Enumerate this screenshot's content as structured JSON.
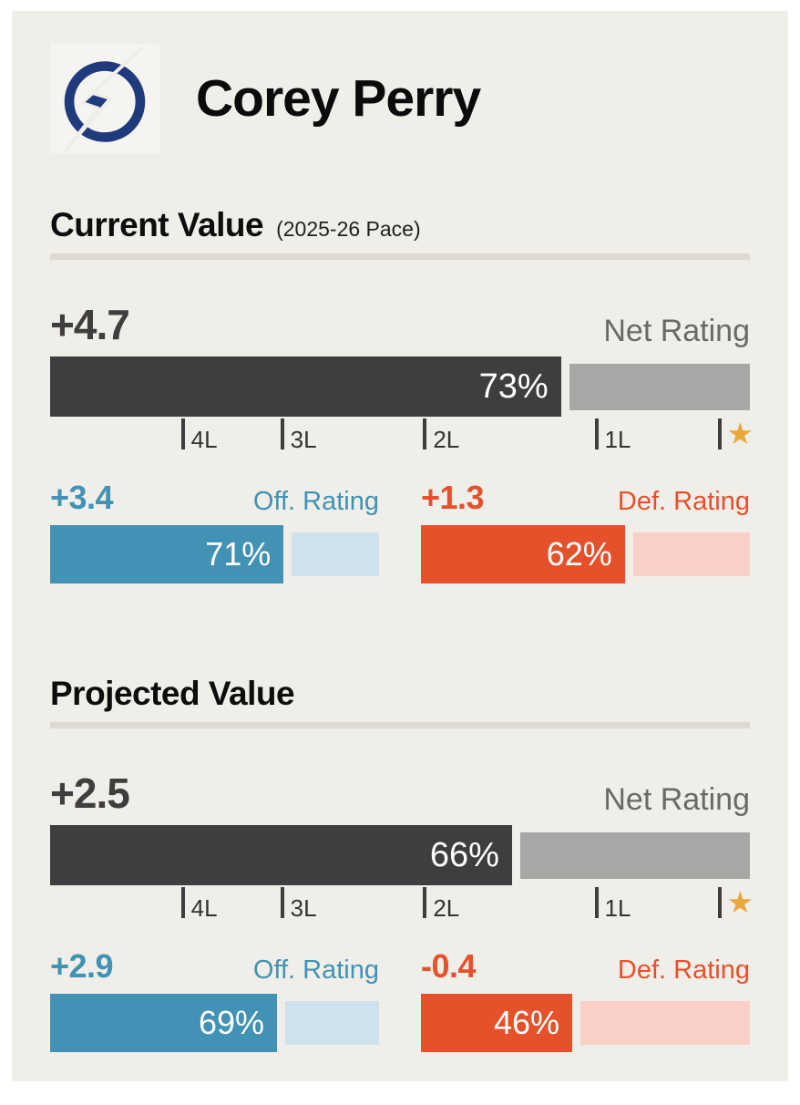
{
  "header": {
    "player_name": "Corey Perry",
    "team_logo": "tampa-bay-lightning-logo"
  },
  "colors": {
    "card_bg": "#efeee8",
    "logo_bg": "#f5f4f0",
    "dark": "#403d3e",
    "gray": "#a9a7a6",
    "muted": "#6b6968",
    "blue": "#4192b4",
    "blue_light": "#cee1ec",
    "orange": "#e5512b",
    "orange_light": "#f8d0c8",
    "star": "#eaa83c",
    "divider": "#dcdad2",
    "navy": "#1f3a7d"
  },
  "axis": {
    "ticks": [
      {
        "label": "4L",
        "pos": 18.7
      },
      {
        "label": "3L",
        "pos": 32.9
      },
      {
        "label": "2L",
        "pos": 53.3
      },
      {
        "label": "1L",
        "pos": 77.8
      }
    ],
    "star": {
      "char": "★",
      "pos": 95.5
    }
  },
  "sections": [
    {
      "title": "Current Value",
      "subtitle": "(2025-26 Pace)",
      "net": {
        "label": "Net Rating",
        "value": "+4.7",
        "pct": 73,
        "pct_label": "73%"
      },
      "off": {
        "label": "Off. Rating",
        "value": "+3.4",
        "pct": 71,
        "pct_label": "71%"
      },
      "def": {
        "label": "Def. Rating",
        "value": "+1.3",
        "pct": 62,
        "pct_label": "62%"
      }
    },
    {
      "title": "Projected Value",
      "subtitle": "",
      "net": {
        "label": "Net Rating",
        "value": "+2.5",
        "pct": 66,
        "pct_label": "66%"
      },
      "off": {
        "label": "Off. Rating",
        "value": "+2.9",
        "pct": 69,
        "pct_label": "69%"
      },
      "def": {
        "label": "Def. Rating",
        "value": "-0.4",
        "pct": 46,
        "pct_label": "46%"
      }
    }
  ],
  "chart_data": {
    "type": "bar",
    "title": "Corey Perry",
    "xlim": [
      0,
      100
    ],
    "axis_ticks": [
      "4L",
      "3L",
      "2L",
      "1L",
      "★"
    ],
    "axis_tick_positions_pct": [
      18.7,
      32.9,
      53.3,
      77.8,
      95.5
    ],
    "sections": [
      {
        "title": "Current Value (2025-26 Pace)",
        "bars": [
          {
            "label": "Net Rating",
            "value": 4.7,
            "percentile": 73
          },
          {
            "label": "Off. Rating",
            "value": 3.4,
            "percentile": 71
          },
          {
            "label": "Def. Rating",
            "value": 1.3,
            "percentile": 62
          }
        ]
      },
      {
        "title": "Projected Value",
        "bars": [
          {
            "label": "Net Rating",
            "value": 2.5,
            "percentile": 66
          },
          {
            "label": "Off. Rating",
            "value": 2.9,
            "percentile": 69
          },
          {
            "label": "Def. Rating",
            "value": -0.4,
            "percentile": 46
          }
        ]
      }
    ]
  }
}
